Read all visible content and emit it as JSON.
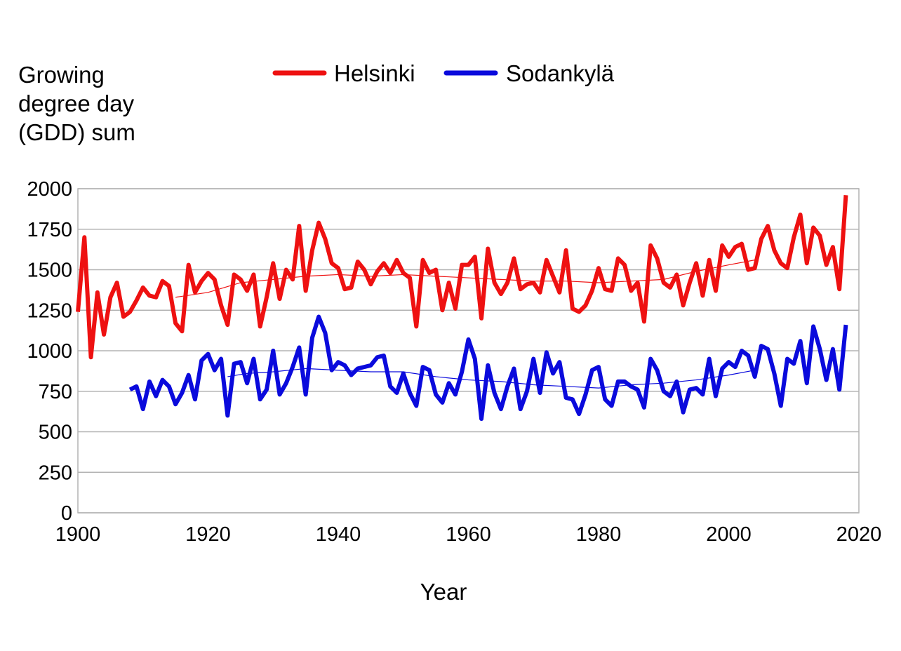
{
  "chart_data": {
    "type": "line",
    "xlabel": "Year",
    "ylabel_lines": [
      "Growing",
      "degree day",
      "(GDD) sum"
    ],
    "xlim": [
      1900,
      2020
    ],
    "ylim": [
      0,
      2000
    ],
    "xticks": [
      1900,
      1920,
      1940,
      1960,
      1980,
      2000,
      2020
    ],
    "yticks": [
      0,
      250,
      500,
      750,
      1000,
      1250,
      1500,
      1750,
      2000
    ],
    "grid": "horizontal",
    "legend_position": "top",
    "series": [
      {
        "name": "Helsinki",
        "color": "#ee1111",
        "x_start": 1900,
        "values": [
          1240,
          1700,
          960,
          1360,
          1100,
          1330,
          1420,
          1210,
          1240,
          1310,
          1390,
          1340,
          1330,
          1430,
          1400,
          1170,
          1120,
          1530,
          1360,
          1430,
          1480,
          1440,
          1280,
          1160,
          1470,
          1440,
          1370,
          1470,
          1150,
          1330,
          1540,
          1320,
          1500,
          1440,
          1770,
          1370,
          1620,
          1790,
          1690,
          1540,
          1510,
          1380,
          1390,
          1550,
          1500,
          1410,
          1490,
          1540,
          1480,
          1560,
          1480,
          1450,
          1150,
          1560,
          1480,
          1500,
          1250,
          1420,
          1260,
          1530,
          1530,
          1580,
          1200,
          1630,
          1420,
          1350,
          1420,
          1570,
          1380,
          1410,
          1420,
          1360,
          1560,
          1460,
          1360,
          1620,
          1260,
          1240,
          1280,
          1370,
          1510,
          1380,
          1370,
          1570,
          1530,
          1370,
          1420,
          1180,
          1650,
          1570,
          1420,
          1390,
          1470,
          1280,
          1420,
          1540,
          1340,
          1560,
          1370,
          1650,
          1580,
          1640,
          1660,
          1500,
          1510,
          1690,
          1770,
          1620,
          1540,
          1510,
          1700,
          1840,
          1540,
          1760,
          1710,
          1530,
          1640,
          1380,
          1960
        ]
      },
      {
        "name": "Sodankylä",
        "color": "#0a0adc",
        "x_start": 1908,
        "values": [
          760,
          780,
          640,
          810,
          720,
          820,
          780,
          670,
          740,
          850,
          700,
          940,
          980,
          880,
          950,
          600,
          920,
          930,
          800,
          950,
          700,
          760,
          1000,
          730,
          800,
          900,
          1020,
          730,
          1080,
          1210,
          1110,
          880,
          930,
          910,
          850,
          890,
          900,
          910,
          960,
          970,
          780,
          740,
          860,
          740,
          660,
          900,
          880,
          730,
          680,
          800,
          730,
          870,
          1070,
          950,
          580,
          910,
          740,
          640,
          780,
          890,
          640,
          750,
          950,
          740,
          990,
          860,
          930,
          710,
          700,
          610,
          730,
          880,
          900,
          700,
          660,
          810,
          810,
          780,
          760,
          650,
          950,
          880,
          750,
          720,
          810,
          620,
          760,
          770,
          730,
          950,
          720,
          890,
          930,
          900,
          1000,
          970,
          840,
          1030,
          1010,
          860,
          660,
          950,
          920,
          1060,
          800,
          1150,
          1010,
          820,
          1010,
          760,
          1160
        ]
      },
      {
        "name": "",
        "color": "#ee1111",
        "thin": true,
        "x": [
          1915,
          1920,
          1925,
          1930,
          1935,
          1940,
          1945,
          1950,
          1955,
          1960,
          1965,
          1970,
          1975,
          1980,
          1985,
          1990,
          1995,
          2000,
          2004
        ],
        "values": [
          1330,
          1360,
          1420,
          1440,
          1460,
          1470,
          1460,
          1470,
          1460,
          1450,
          1440,
          1430,
          1430,
          1420,
          1430,
          1440,
          1490,
          1530,
          1560
        ]
      },
      {
        "name": "",
        "color": "#0a0adc",
        "thin": true,
        "x": [
          1923,
          1926,
          1930,
          1935,
          1940,
          1945,
          1950,
          1955,
          1960,
          1965,
          1970,
          1975,
          1980,
          1985,
          1990,
          1995,
          2000,
          2004
        ],
        "values": [
          840,
          860,
          870,
          890,
          880,
          870,
          870,
          840,
          820,
          810,
          790,
          780,
          770,
          790,
          800,
          820,
          850,
          880
        ]
      }
    ]
  }
}
